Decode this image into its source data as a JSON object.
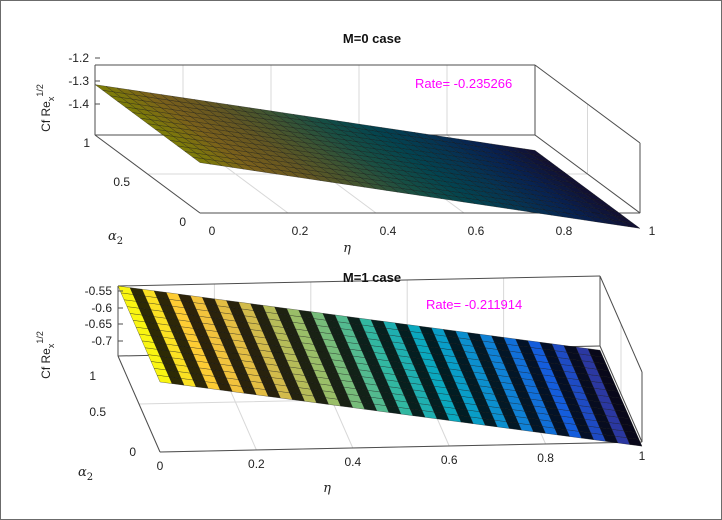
{
  "chart_data": [
    {
      "type": "surface",
      "title": "M=0 case",
      "xlabel": "η",
      "ylabel": "α",
      "ylabel_sub": "2",
      "zlabel": "Cf Re",
      "zlabel_sub": "x",
      "zlabel_sup": "1/2",
      "x_ticks": [
        "0",
        "0.2",
        "0.4",
        "0.6",
        "0.8",
        "1"
      ],
      "y_ticks": [
        "0",
        "0.5",
        "1"
      ],
      "z_ticks": [
        "-1.2",
        "-1.3",
        "-1.4"
      ],
      "xlim": [
        0,
        1
      ],
      "ylim": [
        0,
        1
      ],
      "zlim": [
        -1.45,
        -1.2
      ],
      "annotation": "Rate= -0.235266",
      "annotation_color": "#ff00ff",
      "colormap": "parula",
      "corners": {
        "eta0_alpha0": -1.27,
        "eta0_alpha1": -1.27,
        "eta1_alpha0": -1.505,
        "eta1_alpha1": -1.505
      }
    },
    {
      "type": "surface",
      "title": "M=1 case",
      "xlabel": "η",
      "ylabel": "α",
      "ylabel_sub": "2",
      "zlabel": "Cf Re",
      "zlabel_sub": "x",
      "zlabel_sup": "1/2",
      "x_ticks": [
        "0",
        "0.2",
        "0.4",
        "0.6",
        "0.8",
        "1"
      ],
      "y_ticks": [
        "0",
        "0.5",
        "1"
      ],
      "z_ticks": [
        "-0.55",
        "-0.6",
        "-0.65",
        "-0.7"
      ],
      "xlim": [
        0,
        1
      ],
      "ylim": [
        0,
        1
      ],
      "zlim": [
        -0.75,
        -0.55
      ],
      "annotation": "Rate= -0.211914",
      "annotation_color": "#ff00ff",
      "colormap": "parula",
      "corners": {
        "eta0_alpha0": -0.55,
        "eta0_alpha1": -0.55,
        "eta1_alpha0": -0.762,
        "eta1_alpha1": -0.762
      }
    }
  ]
}
